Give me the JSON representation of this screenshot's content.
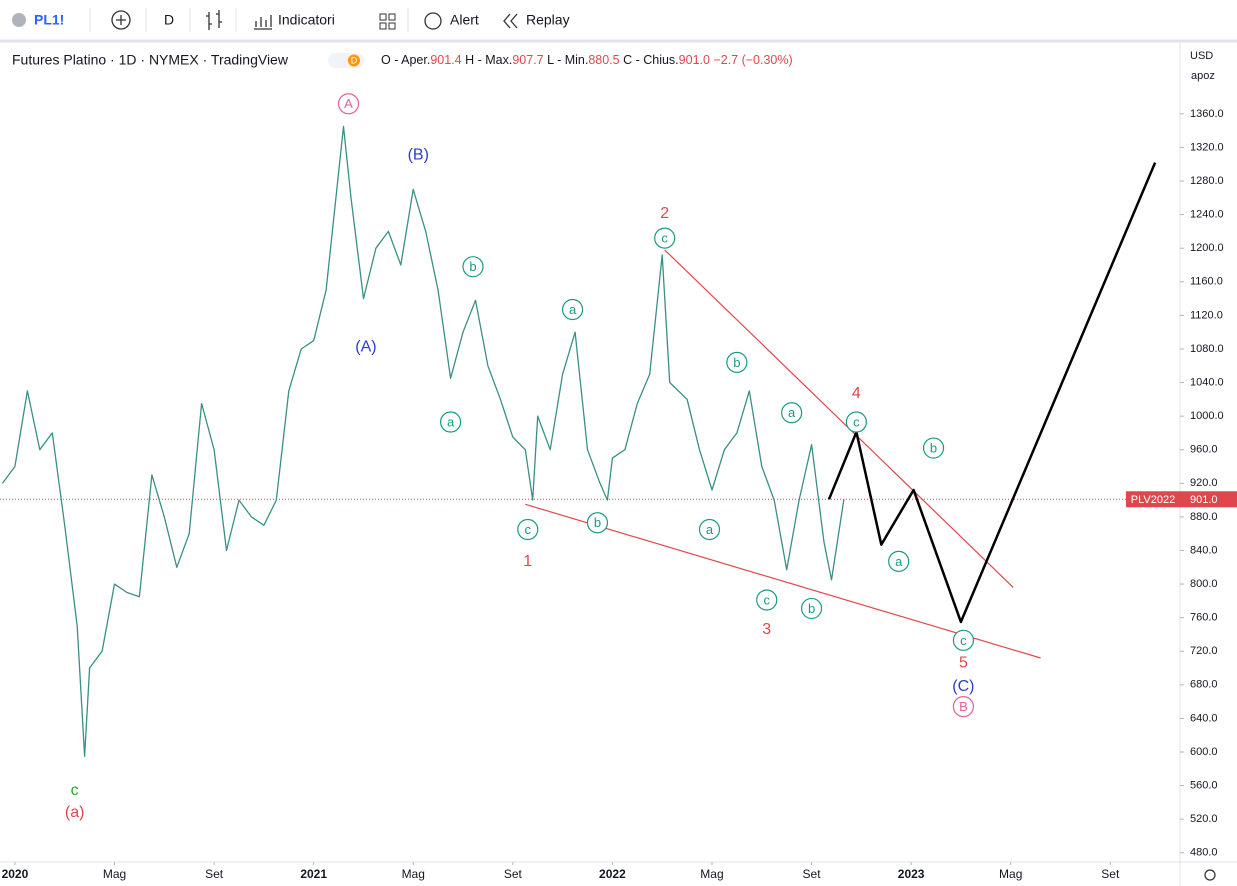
{
  "toolbar": {
    "symbol": "PL1!",
    "interval": "D",
    "indicators": "Indicatori",
    "alert": "Alert",
    "replay": "Replay"
  },
  "legend": {
    "title": "Futures Platino · 1D · NYMEX · TradingView",
    "badge": "D",
    "ohlc": [
      {
        "label": "O - Aper.",
        "value": "901.4"
      },
      {
        "label": "H - Max.",
        "value": "907.7"
      },
      {
        "label": "L - Min.",
        "value": "880.5"
      },
      {
        "label": "C - Chius.",
        "value": "901.0"
      }
    ],
    "change": "−2.7 (−0.30%)"
  },
  "chart_data": {
    "type": "line",
    "currency": "USD",
    "scale_mode": "apoz",
    "xlim": [
      -0.6,
      46.8
    ],
    "xticks": [
      {
        "value": 0,
        "label": "2020"
      },
      {
        "value": 4,
        "label": "Mag"
      },
      {
        "value": 8,
        "label": "Set"
      },
      {
        "value": 12,
        "label": "2021"
      },
      {
        "value": 16,
        "label": "Mag"
      },
      {
        "value": 20,
        "label": "Set"
      },
      {
        "value": 24,
        "label": "2022"
      },
      {
        "value": 28,
        "label": "Mag"
      },
      {
        "value": 32,
        "label": "Set"
      },
      {
        "value": 36,
        "label": "2023"
      },
      {
        "value": 40,
        "label": "Mag"
      },
      {
        "value": 44,
        "label": "Set"
      }
    ],
    "ylim": [
      469,
      1442
    ],
    "yticks": [
      {
        "value": 480,
        "label": "480.0"
      },
      {
        "value": 520,
        "label": "520.0"
      },
      {
        "value": 560,
        "label": "560.0"
      },
      {
        "value": 600,
        "label": "600.0"
      },
      {
        "value": 640,
        "label": "640.0"
      },
      {
        "value": 680,
        "label": "680.0"
      },
      {
        "value": 720,
        "label": "720.0"
      },
      {
        "value": 760,
        "label": "760.0"
      },
      {
        "value": 800,
        "label": "800.0"
      },
      {
        "value": 840,
        "label": "840.0"
      },
      {
        "value": 880,
        "label": "880.0"
      },
      {
        "value": 920,
        "label": "920.0"
      },
      {
        "value": 960,
        "label": "960.0"
      },
      {
        "value": 1000,
        "label": "1000.0"
      },
      {
        "value": 1040,
        "label": "1040.0"
      },
      {
        "value": 1080,
        "label": "1080.0"
      },
      {
        "value": 1120,
        "label": "1120.0"
      },
      {
        "value": 1160,
        "label": "1160.0"
      },
      {
        "value": 1200,
        "label": "1200.0"
      },
      {
        "value": 1240,
        "label": "1240.0"
      },
      {
        "value": 1280,
        "label": "1280.0"
      },
      {
        "value": 1320,
        "label": "1320.0"
      },
      {
        "value": 1360,
        "label": "1360.0"
      }
    ],
    "series": [
      {
        "color": "#3a8f86",
        "width": 1.3,
        "x": [
          -0.5,
          0,
          0.5,
          1,
          1.5,
          2,
          2.5,
          2.8,
          3,
          3.5,
          4,
          4.5,
          5,
          5.5,
          6,
          6.5,
          7,
          7.5,
          8,
          8.5,
          9,
          9.5,
          10,
          10.5,
          11,
          11.5,
          12,
          12.5,
          13.2,
          13.5,
          14,
          14.5,
          15,
          15.5,
          16,
          16.5,
          17,
          17.5,
          18,
          18.5,
          19,
          19.5,
          20,
          20.5,
          20.8,
          21,
          21.5,
          22,
          22.5,
          23,
          23.5,
          23.8,
          24,
          24.5,
          25,
          25.5,
          26,
          26.3,
          27,
          27.5,
          28,
          28.5,
          29,
          29.5,
          30,
          30.5,
          31,
          31.5,
          32,
          32.5,
          32.8,
          33.3
        ],
        "values": [
          920,
          940,
          1030,
          960,
          980,
          870,
          750,
          595,
          700,
          720,
          800,
          790,
          785,
          930,
          880,
          820,
          860,
          1015,
          960,
          840,
          900,
          880,
          870,
          900,
          1030,
          1080,
          1090,
          1150,
          1345,
          1260,
          1140,
          1200,
          1220,
          1180,
          1270,
          1220,
          1150,
          1045,
          1100,
          1138,
          1060,
          1020,
          975,
          960,
          900,
          1000,
          960,
          1050,
          1100,
          960,
          920,
          900,
          950,
          960,
          1015,
          1050,
          1192,
          1040,
          1020,
          960,
          912,
          960,
          980,
          1030,
          940,
          900,
          817,
          900,
          966,
          850,
          805,
          901
        ]
      },
      {
        "color": "#000000",
        "width": 2.5,
        "x": [
          32.7,
          33.8,
          34.8,
          36.1,
          38.0,
          45.8
        ],
        "values": [
          901,
          981,
          847,
          912,
          755,
          1302
        ]
      }
    ],
    "trendlines": [
      {
        "color": "#e0474c",
        "x": [
          26.1,
          40.1
        ],
        "values": [
          1198,
          796
        ]
      },
      {
        "color": "#e0474c",
        "x": [
          20.5,
          41.2
        ],
        "values": [
          895,
          712
        ]
      }
    ],
    "last_price": {
      "name": "PLV2022",
      "value": 901,
      "label": "901.0",
      "color": "#e0474c"
    },
    "annotations": [
      {
        "text": "A",
        "x": 13.4,
        "y": 1372,
        "color": "#e0609a",
        "circled": true
      },
      {
        "text": "(B)",
        "x": 16.2,
        "y": 1312,
        "color": "#2b3fc2",
        "circled": false
      },
      {
        "text": "(A)",
        "x": 14.1,
        "y": 1083,
        "color": "#2b3fc2",
        "circled": false
      },
      {
        "text": "b",
        "x": 18.4,
        "y": 1178,
        "color": "#1a9a80",
        "circled": true
      },
      {
        "text": "a",
        "x": 17.5,
        "y": 993,
        "color": "#1a9a80",
        "circled": true
      },
      {
        "text": "c",
        "x": 20.6,
        "y": 865,
        "color": "#1a9a80",
        "circled": true
      },
      {
        "text": "1",
        "x": 20.6,
        "y": 828,
        "color": "#e0474c",
        "circled": false
      },
      {
        "text": "b",
        "x": 23.4,
        "y": 873,
        "color": "#1a9a80",
        "circled": true
      },
      {
        "text": "a",
        "x": 22.4,
        "y": 1127,
        "color": "#1a9a80",
        "circled": true
      },
      {
        "text": "2",
        "x": 26.1,
        "y": 1242,
        "color": "#e0474c",
        "circled": false
      },
      {
        "text": "c",
        "x": 26.1,
        "y": 1212,
        "color": "#1a9a80",
        "circled": true
      },
      {
        "text": "b",
        "x": 29.0,
        "y": 1064,
        "color": "#1a9a80",
        "circled": true
      },
      {
        "text": "a",
        "x": 27.9,
        "y": 865,
        "color": "#1a9a80",
        "circled": true
      },
      {
        "text": "c",
        "x": 30.2,
        "y": 781,
        "color": "#1a9a80",
        "circled": true
      },
      {
        "text": "3",
        "x": 30.2,
        "y": 747,
        "color": "#e0474c",
        "circled": false
      },
      {
        "text": "a",
        "x": 31.2,
        "y": 1004,
        "color": "#1a9a80",
        "circled": true
      },
      {
        "text": "b",
        "x": 32.0,
        "y": 771,
        "color": "#1a9a80",
        "circled": true
      },
      {
        "text": "4",
        "x": 33.8,
        "y": 1028,
        "color": "#e0474c",
        "circled": false
      },
      {
        "text": "c",
        "x": 33.8,
        "y": 993,
        "color": "#1a9a80",
        "circled": true
      },
      {
        "text": "b",
        "x": 36.9,
        "y": 962,
        "color": "#1a9a80",
        "circled": true
      },
      {
        "text": "a",
        "x": 35.5,
        "y": 827,
        "color": "#1a9a80",
        "circled": true
      },
      {
        "text": "c",
        "x": 38.1,
        "y": 733,
        "color": "#1a9a80",
        "circled": true
      },
      {
        "text": "5",
        "x": 38.1,
        "y": 707,
        "color": "#e0474c",
        "circled": false
      },
      {
        "text": "(C)",
        "x": 38.1,
        "y": 679,
        "color": "#2b3fc2",
        "circled": false
      },
      {
        "text": "B",
        "x": 38.1,
        "y": 654,
        "color": "#e0609a",
        "circled": true
      },
      {
        "text": "c",
        "x": 2.4,
        "y": 555,
        "color": "#2aa52a",
        "circled": false
      },
      {
        "text": "(a)",
        "x": 2.4,
        "y": 529,
        "color": "#e0474c",
        "circled": false
      }
    ]
  }
}
